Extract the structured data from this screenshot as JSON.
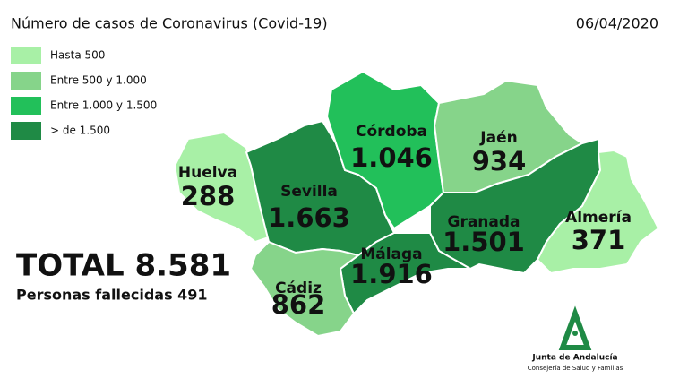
{
  "header": {
    "title": "Número de casos de Coronavirus (Covid-19)",
    "date": "06/04/2020"
  },
  "legend": [
    {
      "label": "Hasta 500",
      "color": "#a8f0a6"
    },
    {
      "label": "Entre 500 y 1.000",
      "color": "#86d48a"
    },
    {
      "label": "Entre 1.000 y 1.500",
      "color": "#22c05a"
    },
    {
      "label": "> de 1.500",
      "color": "#1f8a45"
    }
  ],
  "provinces": [
    {
      "name": "Huelva",
      "cases": "288",
      "color": "#a8f0a6"
    },
    {
      "name": "Sevilla",
      "cases": "1.663",
      "color": "#1f8a45"
    },
    {
      "name": "Córdoba",
      "cases": "1.046",
      "color": "#22c05a"
    },
    {
      "name": "Jaén",
      "cases": "934",
      "color": "#86d48a"
    },
    {
      "name": "Granada",
      "cases": "1.501",
      "color": "#1f8a45"
    },
    {
      "name": "Almería",
      "cases": "371",
      "color": "#a8f0a6"
    },
    {
      "name": "Málaga",
      "cases": "1.916",
      "color": "#1f8a45"
    },
    {
      "name": "Cádiz",
      "cases": "862",
      "color": "#86d48a"
    }
  ],
  "summary": {
    "total": "TOTAL 8.581",
    "deaths": "Personas fallecidas 491"
  },
  "logo": {
    "name": "Junta de Andalucía",
    "department": "Consejería de Salud y Familias"
  }
}
